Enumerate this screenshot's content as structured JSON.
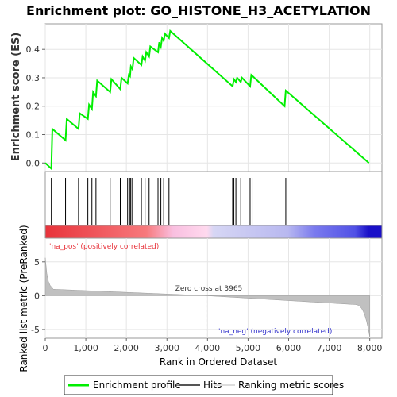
{
  "title": "Enrichment plot: GO_HISTONE_H3_ACETYLATION",
  "chart_data": {
    "type": "line",
    "title": "Enrichment plot: GO_HISTONE_H3_ACETYLATION",
    "xlabel": "Rank in Ordered Dataset",
    "ylabel_top": "Enrichment score (ES)",
    "ylabel_bottom": "Ranked list metric (PreRanked)",
    "xlim": [
      0,
      8300
    ],
    "ylim_top": [
      -0.03,
      0.49
    ],
    "ylim_bottom": [
      -6.3,
      8.5
    ],
    "x_ticks": [
      0,
      1000,
      2000,
      3000,
      4000,
      5000,
      6000,
      7000,
      8000
    ],
    "x_tick_labels": [
      "0",
      "1,000",
      "2,000",
      "3,000",
      "4,000",
      "5,000",
      "6,000",
      "7,000",
      "8,000"
    ],
    "y_ticks_top": [
      0.0,
      0.1,
      0.2,
      0.3,
      0.4
    ],
    "y_tick_labels_top": [
      "0.0",
      "0.1",
      "0.2",
      "0.3",
      "0.4"
    ],
    "y_ticks_bottom": [
      -5,
      0,
      5
    ],
    "y_tick_labels_bottom": [
      "-5",
      "0",
      "5"
    ],
    "grid": true,
    "series": [
      {
        "name": "Enrichment profile",
        "color": "#00ee00",
        "x": [
          0,
          150,
          175,
          500,
          530,
          820,
          850,
          1050,
          1080,
          1150,
          1180,
          1250,
          1280,
          1600,
          1630,
          1850,
          1880,
          2030,
          2060,
          2090,
          2110,
          2150,
          2180,
          2370,
          2400,
          2460,
          2490,
          2560,
          2590,
          2780,
          2810,
          2850,
          2880,
          2920,
          2950,
          3050,
          3080,
          4620,
          4650,
          4700,
          4730,
          4820,
          4850,
          5050,
          5080,
          5900,
          5930,
          7980
        ],
        "y": [
          0.0,
          -0.02,
          0.12,
          0.08,
          0.155,
          0.12,
          0.175,
          0.155,
          0.205,
          0.19,
          0.25,
          0.235,
          0.29,
          0.25,
          0.295,
          0.26,
          0.3,
          0.28,
          0.31,
          0.305,
          0.34,
          0.33,
          0.37,
          0.345,
          0.375,
          0.36,
          0.39,
          0.375,
          0.41,
          0.39,
          0.425,
          0.41,
          0.44,
          0.43,
          0.455,
          0.44,
          0.465,
          0.27,
          0.295,
          0.285,
          0.3,
          0.285,
          0.3,
          0.27,
          0.31,
          0.2,
          0.255,
          0.0
        ]
      }
    ],
    "hits": [
      150,
      500,
      820,
      1050,
      1150,
      1250,
      1600,
      1850,
      2030,
      2090,
      2110,
      2150,
      2370,
      2460,
      2560,
      2780,
      2850,
      2920,
      3050,
      4620,
      4650,
      4700,
      4820,
      5050,
      5100,
      5930
    ],
    "zero_cross": 3965,
    "annotations": {
      "pos_label": "'na_pos' (positively correlated)",
      "neg_label": "'na_neg' (negatively correlated)",
      "zero_cross_label": "Zero cross at 3965"
    },
    "legend": [
      "Enrichment profile",
      "Hits",
      "Ranking metric scores"
    ],
    "legend_placement": "bottom",
    "colors": {
      "profile": "#00ee00",
      "pos_text": "#e8333b",
      "neg_text": "#3333cc",
      "hits": "#000000",
      "metric": "#c0c0c0"
    }
  }
}
